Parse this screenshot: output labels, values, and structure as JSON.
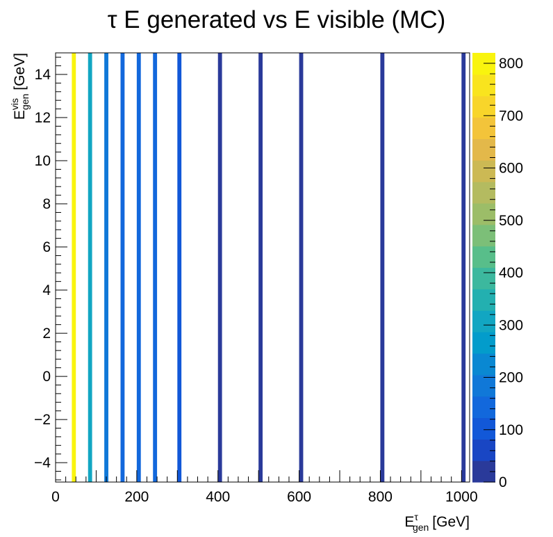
{
  "chart_data": {
    "type": "heatmap",
    "title": "τ E generated vs E visible (MC)",
    "xlabel": {
      "main": "E",
      "sup": "τ",
      "sub": "gen",
      "unit": "[GeV]"
    },
    "ylabel": {
      "main": "E",
      "sup": "vis",
      "sub": "gen",
      "unit": "[GeV]"
    },
    "xlim": [
      0,
      1020
    ],
    "ylim": [
      -4.9,
      15
    ],
    "xticks": [
      0,
      200,
      400,
      600,
      800,
      1000
    ],
    "yticks": [
      -4,
      -2,
      0,
      2,
      4,
      6,
      8,
      10,
      12,
      14
    ],
    "zlim": [
      0,
      820
    ],
    "zticks": [
      0,
      100,
      200,
      300,
      400,
      500,
      600,
      700,
      800
    ],
    "palette": [
      "#2a3a9a",
      "#1946c4",
      "#1258d8",
      "#1268dc",
      "#1078d8",
      "#0a88d2",
      "#039ccb",
      "#12a6c2",
      "#23b0b0",
      "#3cb89e",
      "#58be8a",
      "#7cbf78",
      "#9cbd68",
      "#b4bb60",
      "#ccb954",
      "#e3b84a",
      "#f3c43a",
      "#f8d52a",
      "#f9e41e",
      "#f9f40e"
    ],
    "bins": [
      {
        "x0": 40,
        "x1": 50,
        "z": 800
      },
      {
        "x0": 80,
        "x1": 90,
        "z": 300
      },
      {
        "x0": 120,
        "x1": 130,
        "z": 200
      },
      {
        "x0": 160,
        "x1": 170,
        "z": 160
      },
      {
        "x0": 200,
        "x1": 210,
        "z": 140
      },
      {
        "x0": 240,
        "x1": 250,
        "z": 130
      },
      {
        "x0": 300,
        "x1": 310,
        "z": 120
      },
      {
        "x0": 400,
        "x1": 410,
        "z": 30
      },
      {
        "x0": 500,
        "x1": 510,
        "z": 30
      },
      {
        "x0": 600,
        "x1": 610,
        "z": 30
      },
      {
        "x0": 800,
        "x1": 810,
        "z": 30
      },
      {
        "x0": 1000,
        "x1": 1010,
        "z": 30
      }
    ],
    "grid": false,
    "legend": "color scale on right"
  }
}
